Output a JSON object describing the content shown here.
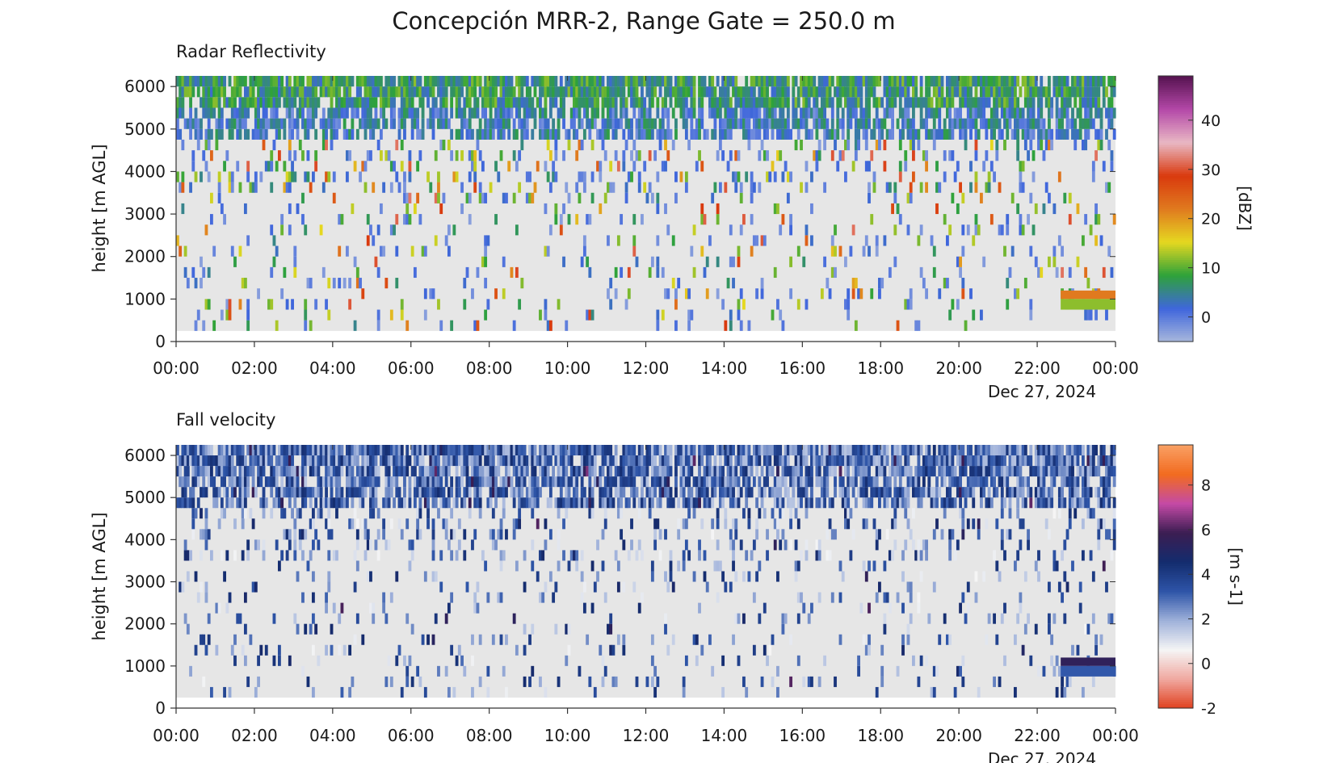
{
  "figure": {
    "title": "Concepción MRR-2, Range Gate = 250.0 m"
  },
  "chart_data": [
    {
      "type": "heatmap",
      "title": "Radar Reflectivity",
      "xlabel": "",
      "ylabel": "height [m AGL]",
      "x_ticks": [
        "00:00",
        "02:00",
        "04:00",
        "06:00",
        "08:00",
        "10:00",
        "12:00",
        "14:00",
        "16:00",
        "18:00",
        "20:00",
        "22:00",
        "00:00"
      ],
      "x_range_hours": [
        0,
        24
      ],
      "date_label": "Dec 27, 2024",
      "y_ticks": [
        0,
        1000,
        2000,
        3000,
        4000,
        5000,
        6000
      ],
      "ylim": [
        0,
        6250
      ],
      "data_height_range": [
        250,
        6250
      ],
      "colorbar": {
        "label": "[dBZ]",
        "range": [
          -5,
          49
        ],
        "ticks": [
          0,
          10,
          20,
          30,
          40
        ],
        "colors": [
          "#a9b8dc",
          "#3f66dc",
          "#2ea23a",
          "#e5d820",
          "#e07a1f",
          "#d93a0e",
          "#e9b8c4",
          "#b448a8",
          "#561350"
        ]
      },
      "features": [
        {
          "description_value": "echo band 1000-1200 m",
          "start_hours": 22.6,
          "end_hours": 24.0,
          "base_m": 1000,
          "top_m": 1200,
          "value_dbz": 22
        },
        {
          "description_value": "echo band 750-1000 m",
          "start_hours": 22.6,
          "end_hours": 24.0,
          "base_m": 750,
          "top_m": 1000,
          "value_dbz": 12
        }
      ],
      "grid": false
    },
    {
      "type": "heatmap",
      "title": "Fall velocity",
      "xlabel": "",
      "ylabel": "height [m AGL]",
      "x_ticks": [
        "00:00",
        "02:00",
        "04:00",
        "06:00",
        "08:00",
        "10:00",
        "12:00",
        "14:00",
        "16:00",
        "18:00",
        "20:00",
        "22:00",
        "00:00"
      ],
      "x_range_hours": [
        0,
        24
      ],
      "date_label": "Dec 27, 2024",
      "y_ticks": [
        0,
        1000,
        2000,
        3000,
        4000,
        5000,
        6000
      ],
      "ylim": [
        0,
        6250
      ],
      "data_height_range": [
        250,
        6250
      ],
      "colorbar": {
        "label": "[m s-1]",
        "range": [
          -2,
          9.8
        ],
        "ticks": [
          -2,
          0,
          2,
          4,
          6,
          8
        ],
        "colors": [
          "#e0401e",
          "#f0a8a0",
          "#f5f5f5",
          "#9fb1da",
          "#2e55a8",
          "#142c6e",
          "#3b1d52",
          "#c44aa6",
          "#f26b1f",
          "#f9a064"
        ]
      },
      "features": [
        {
          "description_value": "echo band 1000-1200 m",
          "start_hours": 22.6,
          "end_hours": 24.0,
          "base_m": 1000,
          "top_m": 1200,
          "value_ms": 5.5
        },
        {
          "description_value": "echo band 750-1000 m",
          "start_hours": 22.6,
          "end_hours": 24.0,
          "base_m": 750,
          "top_m": 1000,
          "value_ms": 3.2
        }
      ],
      "grid": false
    }
  ]
}
